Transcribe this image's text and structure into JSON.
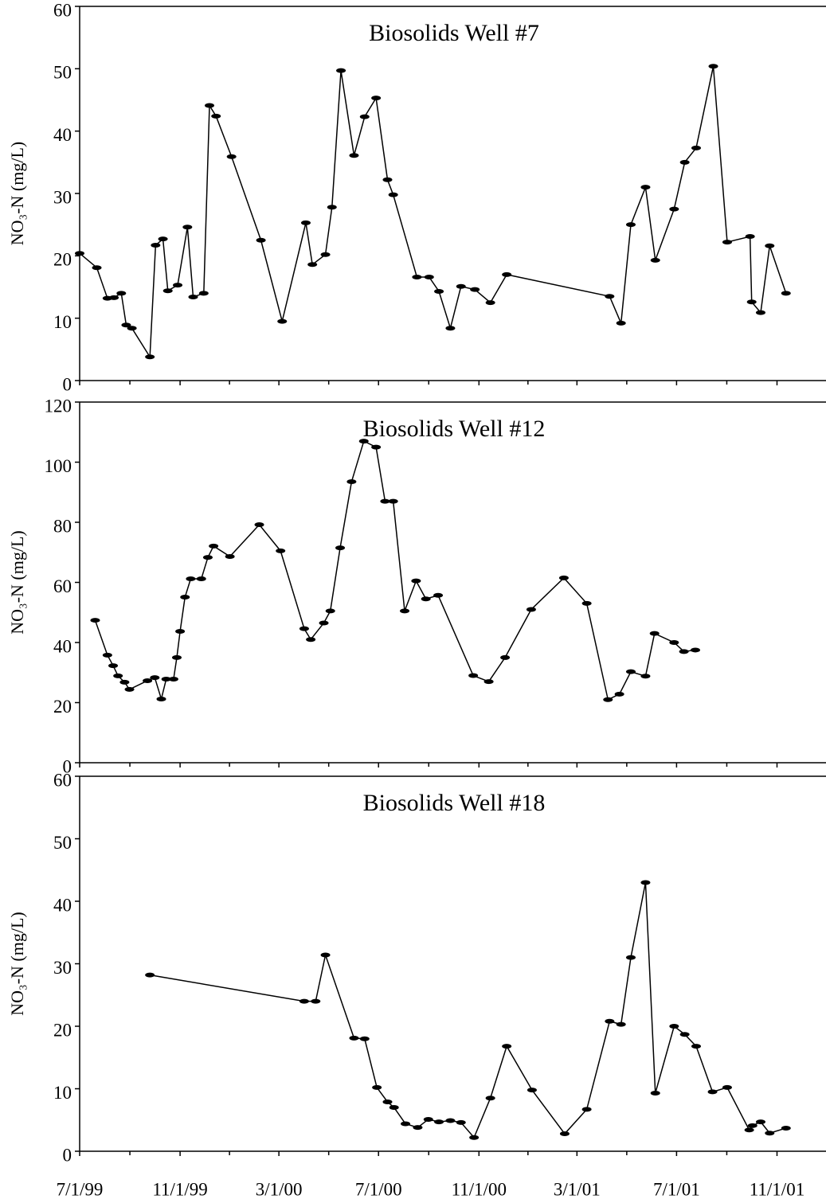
{
  "chart_data": [
    {
      "type": "line",
      "title": "Biosolids Well #7",
      "y_label": "NO₃-N (mg/L)",
      "xlim": [
        "7/1/99",
        "12/31/01"
      ],
      "ylim": [
        0,
        60
      ],
      "yticks": [
        0,
        10,
        20,
        30,
        40,
        50,
        60
      ],
      "series": [
        {
          "color": "#000000",
          "x": [
            "7/1/99",
            "7/22/99",
            "8/4/99",
            "8/12/99",
            "8/21/99",
            "8/27/99",
            "9/3/99",
            "9/25/99",
            "10/2/99",
            "10/11/99",
            "10/17/99",
            "10/29/99",
            "11/10/99",
            "11/17/99",
            "11/30/99",
            "12/7/99",
            "12/15/99",
            "1/3/00",
            "2/8/00",
            "3/5/00",
            "4/3/00",
            "4/11/00",
            "4/27/00",
            "5/5/00",
            "5/16/00",
            "6/1/00",
            "6/14/00",
            "6/28/00",
            "7/12/00",
            "7/19/00",
            "8/17/00",
            "9/1/00",
            "9/13/00",
            "9/27/00",
            "10/10/00",
            "10/27/00",
            "11/15/00",
            "12/5/00",
            "4/10/01",
            "4/24/01",
            "5/6/01",
            "5/24/01",
            "6/5/01",
            "6/28/01",
            "7/11/01",
            "7/25/01",
            "8/15/01",
            "9/1/01",
            "9/29/01",
            "10/1/01",
            "10/12/01",
            "10/23/01",
            "11/12/01"
          ],
          "values": [
            20.4,
            18.1,
            13.2,
            13.3,
            14.0,
            8.9,
            8.4,
            3.8,
            21.7,
            22.7,
            14.4,
            15.3,
            24.6,
            13.4,
            14.0,
            44.1,
            42.4,
            35.9,
            22.5,
            9.5,
            25.3,
            18.6,
            20.2,
            27.8,
            49.7,
            36.1,
            42.3,
            45.3,
            32.2,
            29.8,
            16.6,
            16.6,
            14.3,
            8.4,
            15.1,
            14.6,
            12.5,
            17.0,
            13.5,
            9.2,
            25.0,
            31.0,
            19.3,
            27.5,
            35.0,
            37.3,
            50.4,
            22.2,
            23.1,
            12.6,
            10.9,
            21.6,
            14.0
          ]
        }
      ]
    },
    {
      "type": "line",
      "title": "Biosolids Well #12",
      "y_label": "NO₃-N (mg/L)",
      "xlim": [
        "7/1/99",
        "12/31/01"
      ],
      "ylim": [
        0,
        120
      ],
      "yticks": [
        0,
        20,
        40,
        60,
        80,
        100,
        120
      ],
      "series": [
        {
          "color": "#000000",
          "x": [
            "7/20/99",
            "8/4/99",
            "8/11/99",
            "8/17/99",
            "8/25/99",
            "8/31/99",
            "9/22/99",
            "10/1/99",
            "10/9/99",
            "10/15/99",
            "10/24/99",
            "10/28/99",
            "11/1/99",
            "11/7/99",
            "11/14/99",
            "11/27/99",
            "12/5/99",
            "12/12/99",
            "1/1/00",
            "2/6/00",
            "3/3/00",
            "4/1/00",
            "4/9/00",
            "4/25/00",
            "5/3/00",
            "5/15/00",
            "5/29/00",
            "6/13/00",
            "6/28/00",
            "7/9/00",
            "7/19/00",
            "8/2/00",
            "8/16/00",
            "8/28/00",
            "9/12/00",
            "10/25/00",
            "11/13/00",
            "12/3/00",
            "1/4/01",
            "2/13/01",
            "3/13/01",
            "4/8/01",
            "4/22/01",
            "5/6/01",
            "5/24/01",
            "6/4/01",
            "6/28/01",
            "7/10/01",
            "7/24/01"
          ],
          "values": [
            47.4,
            35.8,
            32.3,
            28.9,
            26.8,
            24.4,
            27.3,
            28.3,
            21.2,
            27.8,
            27.8,
            35.0,
            43.7,
            55.1,
            61.2,
            61.2,
            68.3,
            72.1,
            68.6,
            79.2,
            70.5,
            44.6,
            41.0,
            46.5,
            50.5,
            71.5,
            93.5,
            107,
            105,
            87,
            87,
            50.5,
            60.5,
            54.5,
            55.7,
            29,
            27,
            35,
            51,
            61.5,
            53,
            21,
            22.8,
            30.3,
            28.8,
            43,
            40,
            37,
            37.5
          ]
        }
      ]
    },
    {
      "type": "line",
      "title": "Biosolids Well #18",
      "y_label": "NO₃-N (mg/L)",
      "xlim": [
        "7/1/99",
        "12/31/01"
      ],
      "ylim": [
        0,
        60
      ],
      "yticks": [
        0,
        10,
        20,
        30,
        40,
        50,
        60
      ],
      "xticks": [
        "7/1/99",
        "11/1/99",
        "3/1/00",
        "7/1/00",
        "11/1/00",
        "3/1/01",
        "7/1/01",
        "11/1/01"
      ],
      "series": [
        {
          "color": "#000000",
          "x": [
            "9/25/99",
            "4/1/00",
            "4/15/00",
            "4/27/00",
            "6/1/00",
            "6/14/00",
            "6/29/00",
            "7/12/00",
            "7/20/00",
            "8/3/00",
            "8/18/00",
            "8/31/00",
            "9/13/00",
            "9/27/00",
            "10/10/00",
            "10/26/00",
            "11/15/00",
            "12/5/00",
            "1/5/01",
            "2/14/01",
            "3/13/01",
            "4/10/01",
            "4/24/01",
            "5/6/01",
            "5/24/01",
            "6/5/01",
            "6/28/01",
            "7/11/01",
            "7/25/01",
            "8/14/01",
            "9/1/01",
            "9/28/01",
            "10/2/01",
            "10/12/01",
            "10/23/01",
            "11/12/01"
          ],
          "values": [
            28.2,
            24.0,
            24.0,
            31.4,
            18.1,
            18.0,
            10.2,
            7.9,
            7.0,
            4.4,
            3.8,
            5.1,
            4.7,
            4.9,
            4.6,
            2.2,
            8.5,
            16.8,
            9.8,
            2.8,
            6.7,
            20.8,
            20.3,
            31.0,
            43,
            9.3,
            20.0,
            18.7,
            16.8,
            9.5,
            10.2,
            3.4,
            4.1,
            4.7,
            2.9,
            3.7
          ]
        }
      ]
    }
  ]
}
